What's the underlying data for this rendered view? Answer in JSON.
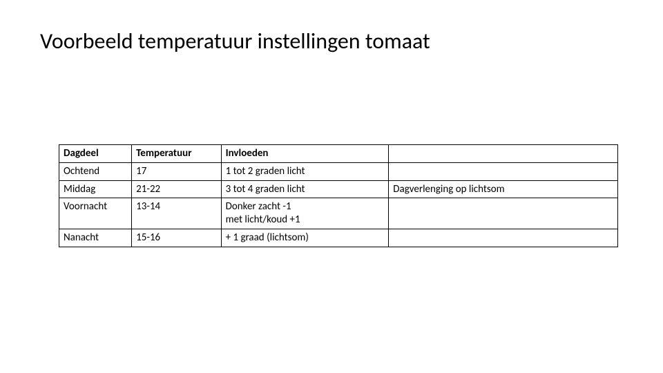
{
  "title": "Voorbeeld temperatuur instellingen tomaat",
  "table": {
    "type": "table",
    "border_color": "#000000",
    "background_color": "#ffffff",
    "text_color": "#000000",
    "header_fontweight": 700,
    "body_fontweight": 400,
    "fontsize": 15,
    "columns": [
      {
        "label": "Dagdeel",
        "width_pct": 13
      },
      {
        "label": "Temperatuur",
        "width_pct": 16
      },
      {
        "label": "Invloeden",
        "width_pct": 30
      },
      {
        "label": "",
        "width_pct": 41
      }
    ],
    "rows": [
      {
        "dagdeel": "Ochtend",
        "temperatuur": "17",
        "invloeden": "1 tot 2 graden licht",
        "extra": ""
      },
      {
        "dagdeel": "Middag",
        "temperatuur": "21-22",
        "invloeden": "3 tot 4 graden licht",
        "extra": "Dagverlenging op lichtsom"
      },
      {
        "dagdeel": "Voornacht",
        "temperatuur": "13-14",
        "invloeden": "Donker zacht -1\nmet licht/koud +1",
        "extra": ""
      },
      {
        "dagdeel": "Nanacht",
        "temperatuur": "15-16",
        "invloeden": "+ 1 graad (lichtsom)",
        "extra": ""
      }
    ]
  }
}
